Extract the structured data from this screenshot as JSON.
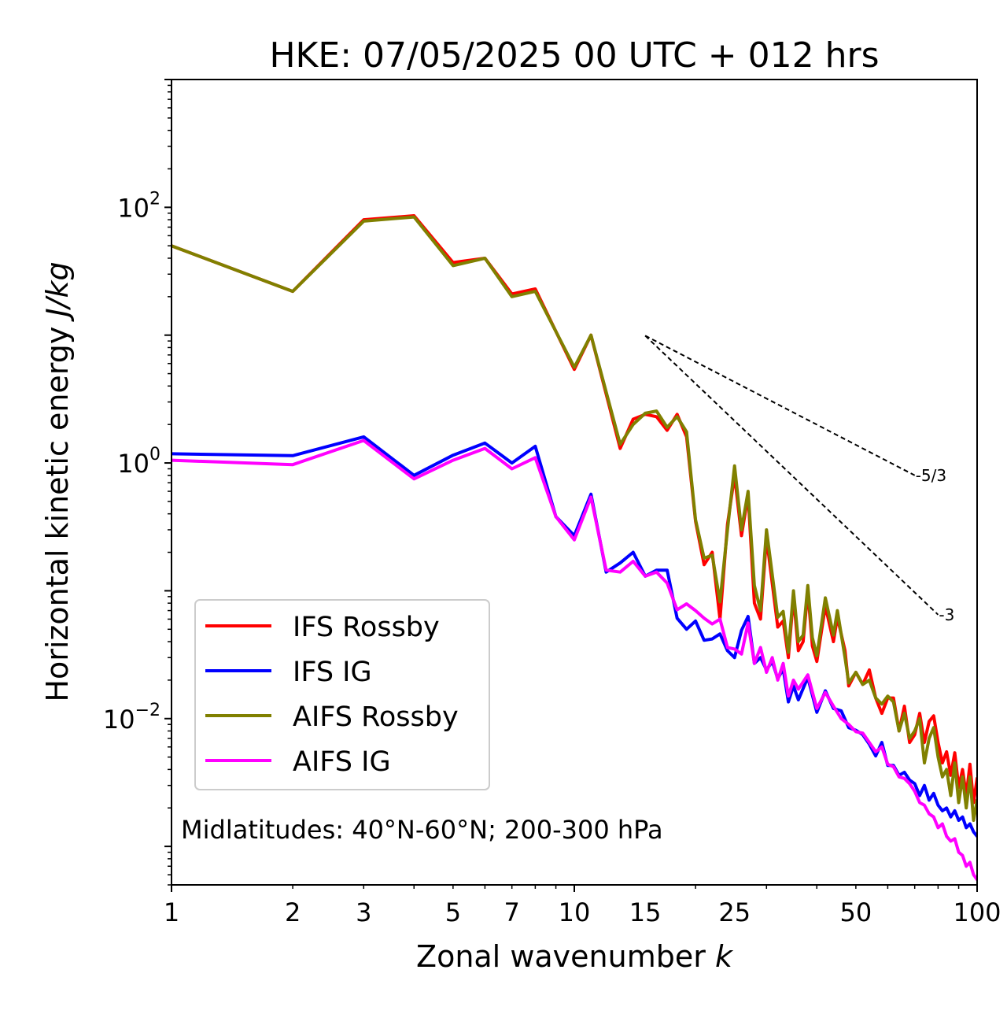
{
  "chart_data": {
    "type": "line",
    "title": "HKE: 07/05/2025 00 UTC + 012 hrs",
    "xlabel": "Zonal wavenumber",
    "xlabel_var": "k",
    "ylabel": "Horizontal kinetic energy",
    "ylabel_unit": "J/kg",
    "xscale": "log",
    "yscale": "log",
    "xlim": [
      1,
      100
    ],
    "ylim": [
      0.0005,
      1000
    ],
    "x_ticks": [
      1,
      2,
      3,
      5,
      7,
      10,
      15,
      25,
      50,
      100
    ],
    "x_tick_labels": [
      "1",
      "2",
      "3",
      "5",
      "7",
      "10",
      "15",
      "25",
      "50",
      "100"
    ],
    "y_ticks": [
      {
        "base": "10",
        "exp": "2",
        "value": 100
      },
      {
        "base": "10",
        "exp": "0",
        "value": 1
      },
      {
        "base": "10",
        "exp": "−2",
        "value": 0.01
      }
    ],
    "legend_position": "lower-left",
    "annotation": "Midlatitudes: 40°N-60°N; 200-300 hPa",
    "reference_slopes": [
      {
        "label": "-5/3",
        "x": [
          15,
          70
        ],
        "y": [
          9.9,
          0.8
        ]
      },
      {
        "label": "-3",
        "x": [
          15,
          80
        ],
        "y": [
          9.9,
          0.065
        ]
      }
    ],
    "series": [
      {
        "name": "IFS Rossby",
        "color": "#ff0000",
        "x": [
          1,
          2,
          3,
          4,
          5,
          6,
          7,
          8,
          10,
          11,
          13,
          14,
          15,
          16,
          17,
          18,
          19,
          20,
          21,
          22,
          23,
          24,
          25,
          26,
          27,
          28,
          29,
          30,
          32,
          33,
          34,
          35,
          36,
          37,
          38,
          39,
          40,
          42,
          44,
          45,
          47,
          48,
          50,
          52,
          54,
          56,
          58,
          60,
          62,
          64,
          66,
          68,
          70,
          72,
          74,
          76,
          78,
          80,
          82,
          84,
          86,
          88,
          90,
          92,
          94,
          96,
          98,
          100
        ],
        "values": [
          50,
          22,
          80,
          86,
          37,
          40,
          21,
          23,
          5.4,
          10,
          1.3,
          2.2,
          2.4,
          2.3,
          1.8,
          2.4,
          1.6,
          0.35,
          0.16,
          0.2,
          0.06,
          0.33,
          0.8,
          0.27,
          0.56,
          0.08,
          0.06,
          0.26,
          0.052,
          0.058,
          0.03,
          0.09,
          0.034,
          0.04,
          0.1,
          0.037,
          0.028,
          0.076,
          0.04,
          0.062,
          0.034,
          0.018,
          0.023,
          0.0185,
          0.024,
          0.0145,
          0.011,
          0.0145,
          0.0145,
          0.008,
          0.0125,
          0.0065,
          0.0075,
          0.011,
          0.0065,
          0.0095,
          0.0105,
          0.0065,
          0.0045,
          0.0055,
          0.0036,
          0.0054,
          0.0029,
          0.004,
          0.0025,
          0.0044,
          0.0022,
          0.0034
        ]
      },
      {
        "name": "IFS IG",
        "color": "#0000ff",
        "x": [
          1,
          2,
          3,
          4,
          5,
          6,
          7,
          8,
          9,
          10,
          11,
          12,
          13,
          14,
          15,
          16,
          17,
          18,
          19,
          20,
          21,
          22,
          23,
          24,
          25,
          26,
          27,
          28,
          29,
          30,
          31,
          32,
          33,
          34,
          35,
          36,
          38,
          40,
          42,
          44,
          46,
          48,
          50,
          52,
          54,
          56,
          58,
          60,
          62,
          64,
          66,
          68,
          70,
          72,
          74,
          76,
          78,
          80,
          82,
          84,
          86,
          88,
          90,
          92,
          94,
          96,
          98,
          100
        ],
        "values": [
          1.18,
          1.14,
          1.6,
          0.8,
          1.15,
          1.43,
          1.0,
          1.35,
          0.38,
          0.27,
          0.57,
          0.14,
          0.165,
          0.2,
          0.13,
          0.145,
          0.145,
          0.061,
          0.05,
          0.058,
          0.041,
          0.042,
          0.046,
          0.034,
          0.03,
          0.049,
          0.063,
          0.027,
          0.03,
          0.024,
          0.028,
          0.0205,
          0.0245,
          0.0135,
          0.018,
          0.014,
          0.021,
          0.0112,
          0.0165,
          0.012,
          0.0115,
          0.0085,
          0.0081,
          0.0075,
          0.0063,
          0.0051,
          0.0065,
          0.0043,
          0.0043,
          0.0036,
          0.0038,
          0.0033,
          0.0031,
          0.0025,
          0.003,
          0.0023,
          0.0026,
          0.0021,
          0.0019,
          0.002,
          0.0017,
          0.0019,
          0.0016,
          0.0017,
          0.0014,
          0.0015,
          0.0013,
          0.0012
        ]
      },
      {
        "name": "AIFS Rossby",
        "color": "#808000",
        "x": [
          1,
          2,
          3,
          4,
          5,
          6,
          7,
          8,
          10,
          11,
          13,
          14,
          15,
          16,
          17,
          18,
          19,
          20,
          21,
          22,
          23,
          24,
          25,
          26,
          27,
          28,
          29,
          30,
          32,
          33,
          34,
          35,
          36,
          37,
          38,
          39,
          40,
          42,
          44,
          45,
          47,
          48,
          50,
          52,
          54,
          56,
          58,
          60,
          62,
          64,
          66,
          68,
          70,
          72,
          74,
          76,
          78,
          80,
          82,
          84,
          86,
          88,
          90,
          92,
          94,
          96,
          98,
          100
        ],
        "values": [
          50,
          22,
          78,
          84,
          35,
          40,
          20,
          22,
          5.6,
          10,
          1.4,
          2.0,
          2.45,
          2.55,
          1.9,
          2.3,
          1.75,
          0.36,
          0.18,
          0.19,
          0.082,
          0.3,
          0.95,
          0.3,
          0.6,
          0.11,
          0.07,
          0.3,
          0.062,
          0.069,
          0.033,
          0.1,
          0.04,
          0.045,
          0.11,
          0.043,
          0.031,
          0.088,
          0.045,
          0.07,
          0.03,
          0.019,
          0.023,
          0.0185,
          0.02,
          0.0145,
          0.013,
          0.015,
          0.0135,
          0.008,
          0.011,
          0.007,
          0.008,
          0.01,
          0.0045,
          0.007,
          0.0085,
          0.005,
          0.0035,
          0.004,
          0.0025,
          0.0045,
          0.0022,
          0.0035,
          0.002,
          0.0035,
          0.0016,
          0.0023
        ]
      },
      {
        "name": "AIFS IG",
        "color": "#ff00ff",
        "x": [
          1,
          2,
          3,
          4,
          5,
          6,
          7,
          8,
          9,
          10,
          11,
          12,
          13,
          14,
          15,
          16,
          17,
          18,
          19,
          20,
          21,
          22,
          23,
          24,
          25,
          26,
          27,
          28,
          29,
          30,
          31,
          32,
          33,
          34,
          35,
          36,
          38,
          40,
          42,
          44,
          46,
          48,
          50,
          52,
          54,
          56,
          58,
          60,
          62,
          64,
          66,
          68,
          70,
          72,
          74,
          76,
          78,
          80,
          82,
          84,
          86,
          88,
          90,
          92,
          94,
          96,
          98,
          100
        ],
        "values": [
          1.05,
          0.97,
          1.5,
          0.75,
          1.05,
          1.3,
          0.9,
          1.1,
          0.38,
          0.25,
          0.54,
          0.145,
          0.14,
          0.17,
          0.13,
          0.14,
          0.115,
          0.071,
          0.079,
          0.07,
          0.061,
          0.055,
          0.06,
          0.036,
          0.035,
          0.032,
          0.056,
          0.027,
          0.036,
          0.023,
          0.03,
          0.02,
          0.027,
          0.015,
          0.02,
          0.017,
          0.022,
          0.012,
          0.016,
          0.0125,
          0.01,
          0.009,
          0.0079,
          0.0077,
          0.0065,
          0.0055,
          0.006,
          0.0044,
          0.0042,
          0.0035,
          0.0034,
          0.0031,
          0.0027,
          0.0022,
          0.0021,
          0.0018,
          0.0017,
          0.0014,
          0.0015,
          0.0012,
          0.0011,
          0.00115,
          0.0009,
          0.00085,
          0.0007,
          0.00075,
          0.0006,
          0.00055
        ]
      }
    ]
  }
}
